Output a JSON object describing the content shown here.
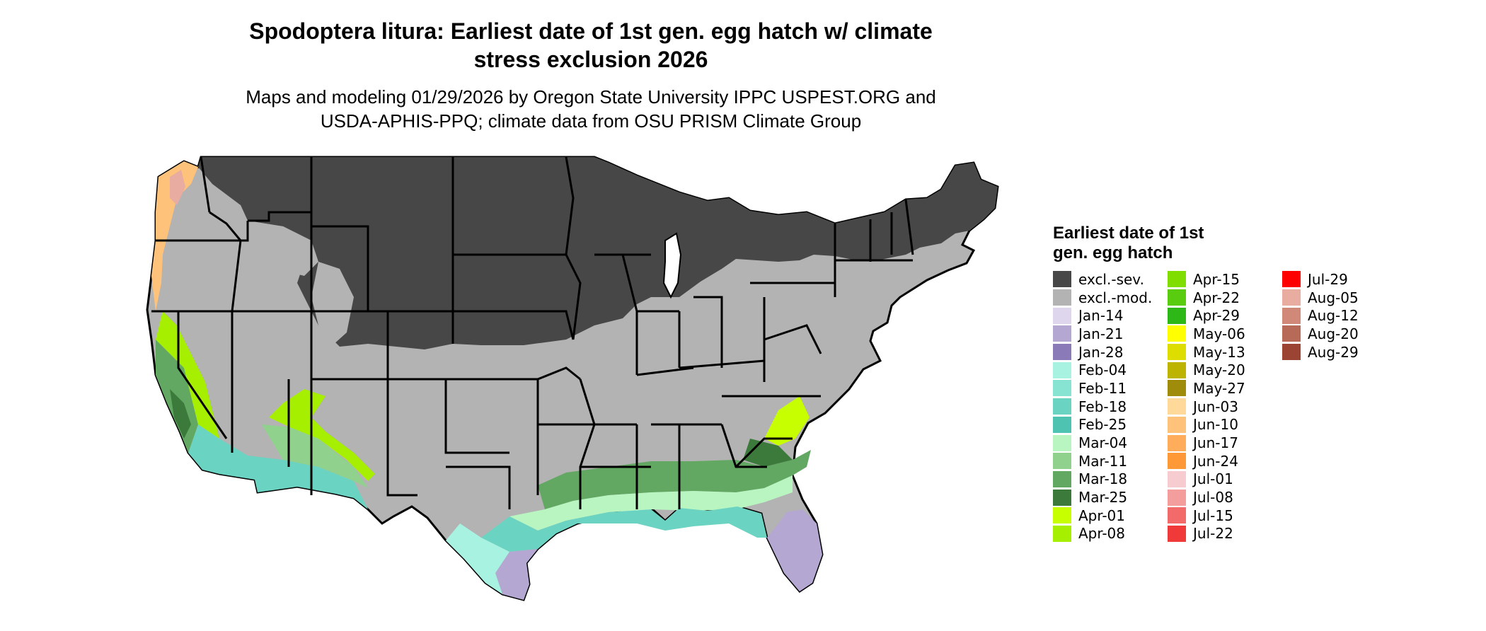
{
  "title_line1": "Spodoptera litura: Earliest date of 1st gen. egg hatch w/ climate",
  "title_line2": "stress exclusion 2026",
  "subtitle_line1": "Maps and modeling 01/29/2026 by Oregon State University IPPC USPEST.ORG and",
  "subtitle_line2": "USDA-APHIS-PPQ; climate data from OSU PRISM Climate Group",
  "legend_title": "Earliest date of 1st gen. egg hatch",
  "legend": [
    {
      "label": "excl.-sev.",
      "color": "#474747"
    },
    {
      "label": "excl.-mod.",
      "color": "#b3b3b3"
    },
    {
      "label": "Jan-14",
      "color": "#ddd6ec"
    },
    {
      "label": "Jan-21",
      "color": "#b4a8d3"
    },
    {
      "label": "Jan-28",
      "color": "#8a7ab8"
    },
    {
      "label": "Feb-04",
      "color": "#a8f2e2"
    },
    {
      "label": "Feb-11",
      "color": "#88e4d2"
    },
    {
      "label": "Feb-18",
      "color": "#6bd3c2"
    },
    {
      "label": "Feb-25",
      "color": "#4fc3b1"
    },
    {
      "label": "Mar-04",
      "color": "#b8f5c0"
    },
    {
      "label": "Mar-11",
      "color": "#8fd18d"
    },
    {
      "label": "Mar-18",
      "color": "#62a862"
    },
    {
      "label": "Mar-25",
      "color": "#3c7a3c"
    },
    {
      "label": "Apr-01",
      "color": "#c8ff00"
    },
    {
      "label": "Apr-08",
      "color": "#a6ef00"
    },
    {
      "label": "Apr-15",
      "color": "#80dd00"
    },
    {
      "label": "Apr-22",
      "color": "#5acc10"
    },
    {
      "label": "Apr-29",
      "color": "#2eb817"
    },
    {
      "label": "May-06",
      "color": "#ffff00"
    },
    {
      "label": "May-13",
      "color": "#dddd00"
    },
    {
      "label": "May-20",
      "color": "#bcb400"
    },
    {
      "label": "May-27",
      "color": "#9e8c0a"
    },
    {
      "label": "Jun-03",
      "color": "#ffd99a"
    },
    {
      "label": "Jun-10",
      "color": "#ffc27a"
    },
    {
      "label": "Jun-17",
      "color": "#ffad5a"
    },
    {
      "label": "Jun-24",
      "color": "#ff9837"
    },
    {
      "label": "Jul-01",
      "color": "#f6ccd0"
    },
    {
      "label": "Jul-08",
      "color": "#f49d9d"
    },
    {
      "label": "Jul-15",
      "color": "#f26a6a"
    },
    {
      "label": "Jul-22",
      "color": "#f03a3a"
    },
    {
      "label": "Jul-29",
      "color": "#ff0000"
    },
    {
      "label": "Aug-05",
      "color": "#e8aca0"
    },
    {
      "label": "Aug-12",
      "color": "#d08878"
    },
    {
      "label": "Aug-20",
      "color": "#b86a58"
    },
    {
      "label": "Aug-29",
      "color": "#9c4434"
    }
  ]
}
